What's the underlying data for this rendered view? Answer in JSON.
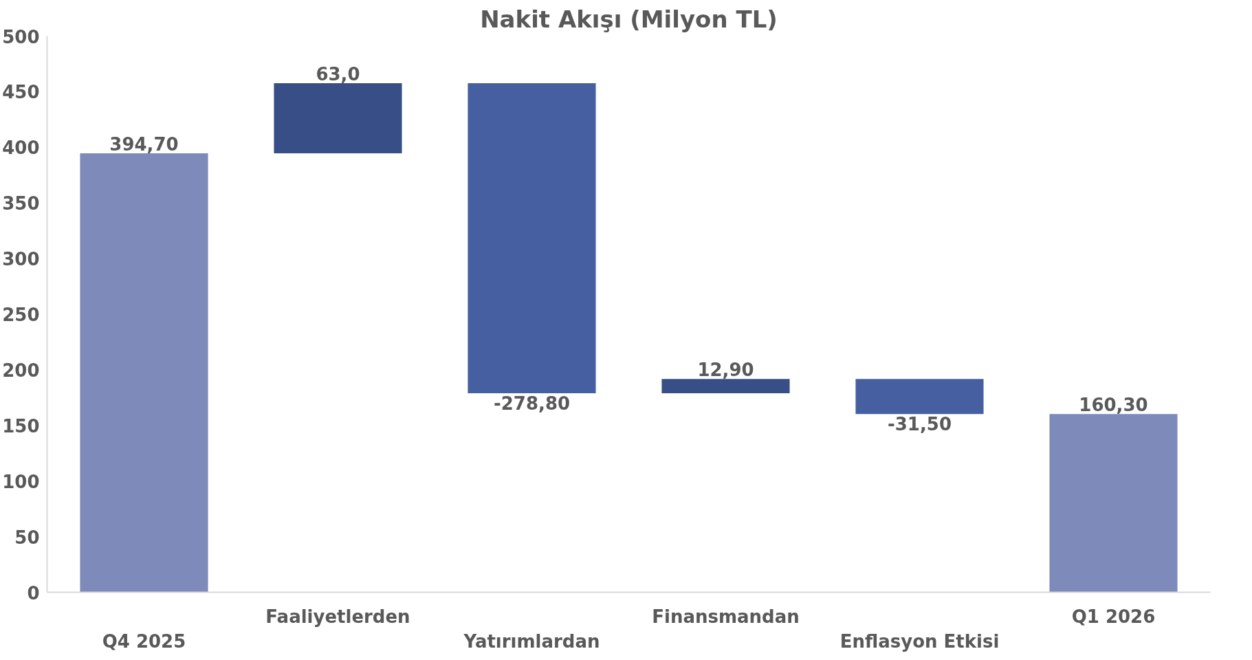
{
  "chart_data": {
    "type": "bar",
    "title": "Nakit Akışı (Milyon TL)",
    "categories": [
      "Q4 2025",
      "Faaliyetlerden",
      "Yatırımlardan",
      "Finansmandan",
      "Enflasyon Etkisi",
      "Q1 2026"
    ],
    "values": [
      394.7,
      63.0,
      -278.8,
      12.9,
      -31.5,
      160.3
    ],
    "base": [
      0,
      394.7,
      457.7,
      178.9,
      191.8,
      0
    ],
    "colors": [
      "#7d8aba",
      "#374f86",
      "#465fa0",
      "#374f86",
      "#465fa0",
      "#7d8aba"
    ],
    "value_labels": [
      "394,70",
      "63,0",
      "-278,80",
      "12,90",
      "-31,50",
      "160,30"
    ],
    "ylim": [
      0,
      500
    ],
    "yticks": [
      0,
      50,
      100,
      150,
      200,
      250,
      300,
      350,
      400,
      450,
      500
    ],
    "grid": false
  }
}
